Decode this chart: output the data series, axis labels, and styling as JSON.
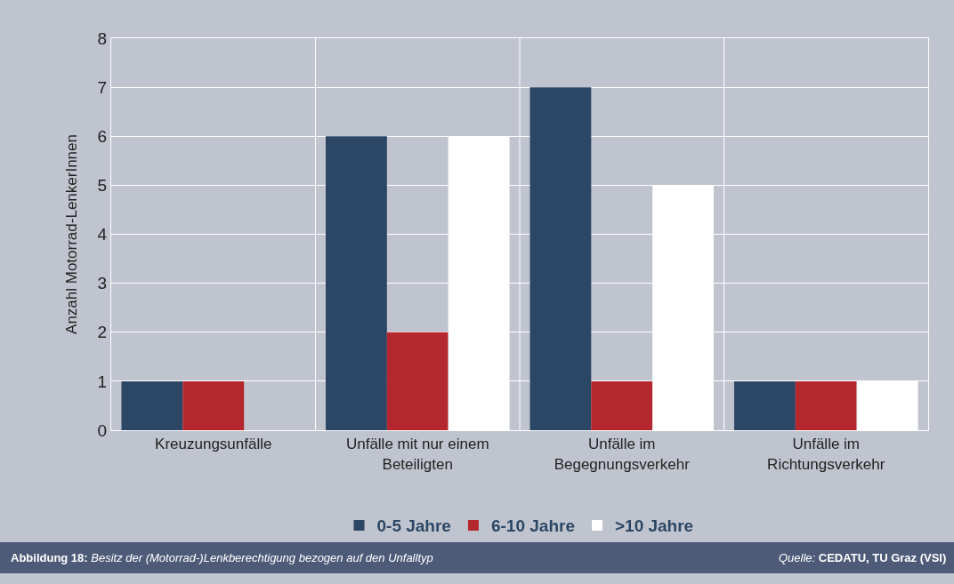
{
  "chart_data": {
    "type": "bar",
    "ylabel": "Anzahl Motorrad-LenkerInnen",
    "categories": [
      "Kreuzungsunfälle",
      "Unfälle mit nur einem Beteiligten",
      "Unfälle im Begegnungsverkehr",
      "Unfälle im Richtungsverkehr"
    ],
    "series": [
      {
        "name": "0-5 Jahre",
        "color": "#2c4765",
        "values": [
          1,
          6,
          7,
          1
        ]
      },
      {
        "name": "6-10 Jahre",
        "color": "#b5272f",
        "values": [
          1,
          2,
          1,
          1
        ]
      },
      {
        "name": ">10 Jahre",
        "color": "#ffffff",
        "values": [
          0,
          6,
          5,
          1
        ]
      }
    ],
    "ylim": [
      0,
      8
    ],
    "yticks": [
      0,
      1,
      2,
      3,
      4,
      5,
      6,
      7,
      8
    ],
    "grid": true,
    "legend": "bottom",
    "annotations": [
      "Abbildung 18: Besitz der (Motorrad-)Lenkberechtigung bezogen auf den Unfalltyp",
      "Quelle: CEDATU, TU Graz (VSI)"
    ]
  }
}
